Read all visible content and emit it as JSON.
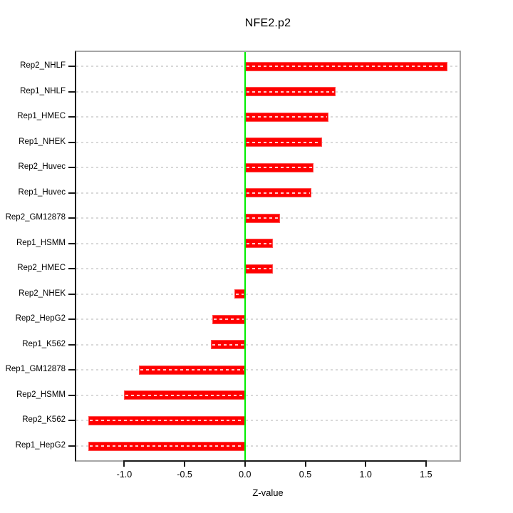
{
  "title": "NFE2.p2",
  "chart_data": {
    "type": "bar",
    "orientation": "horizontal",
    "title": "NFE2.p2",
    "xlabel": "Z-value",
    "categories": [
      "Rep2_NHLF",
      "Rep1_NHLF",
      "Rep1_HMEC",
      "Rep1_NHEK",
      "Rep2_Huvec",
      "Rep1_Huvec",
      "Rep2_GM12878",
      "Rep1_HSMM",
      "Rep2_HMEC",
      "Rep2_NHEK",
      "Rep2_HepG2",
      "Rep1_K562",
      "Rep1_GM12878",
      "Rep2_HSMM",
      "Rep2_K562",
      "Rep1_HepG2"
    ],
    "values": [
      1.68,
      0.75,
      0.69,
      0.64,
      0.57,
      0.55,
      0.29,
      0.23,
      0.23,
      -0.09,
      -0.27,
      -0.28,
      -0.88,
      -1.0,
      -1.3,
      -1.3
    ],
    "xlim": [
      -1.41,
      1.79
    ],
    "xticks": [
      -1.0,
      -0.5,
      0.0,
      0.5,
      1.0,
      1.5
    ],
    "xtick_labels": [
      "-1.0",
      "-0.5",
      "0.0",
      "0.5",
      "1.0",
      "1.5"
    ],
    "grid": true,
    "legend": "none",
    "colors": {
      "bar": "#ff0000",
      "zero_line": "#00ee00",
      "gridline": "#d9d9d9",
      "box": "#a6a6a6",
      "axis": "#1a1a1a",
      "text": "#000000",
      "background": "#ffffff"
    }
  }
}
